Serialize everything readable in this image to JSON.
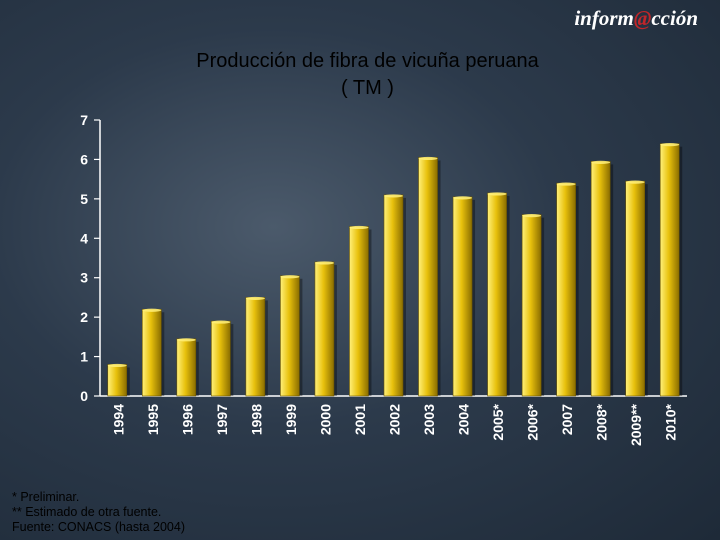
{
  "brand": {
    "prefix": "inform",
    "at": "@",
    "suffix": "cción"
  },
  "colors": {
    "bar_light": "#fff07a",
    "bar_mid": "#e8c10c",
    "bar_dark": "#8a6d00",
    "axis": "#ffffff"
  },
  "chart_data": {
    "type": "bar",
    "title": "Producción de fibra de vicuña peruana",
    "subtitle": "( TM )",
    "categories": [
      "1994",
      "1995",
      "1996",
      "1997",
      "1998",
      "1999",
      "2000",
      "2001",
      "2002",
      "2003",
      "2004",
      "2005*",
      "2006*",
      "2007",
      "2008*",
      "2009**",
      "2010*"
    ],
    "values": [
      0.8,
      2.2,
      1.45,
      1.9,
      2.5,
      3.05,
      3.4,
      4.3,
      5.1,
      6.05,
      5.05,
      5.15,
      4.6,
      5.4,
      5.95,
      5.45,
      6.4
    ],
    "ylim": [
      0,
      7
    ],
    "yticks": [
      "0",
      "1",
      "2",
      "3",
      "4",
      "5",
      "6",
      "7"
    ],
    "grid": false,
    "legend": "none"
  },
  "footnotes": [
    "* Preliminar.",
    "** Estimado de otra fuente.",
    "Fuente: CONACS (hasta 2004)"
  ]
}
